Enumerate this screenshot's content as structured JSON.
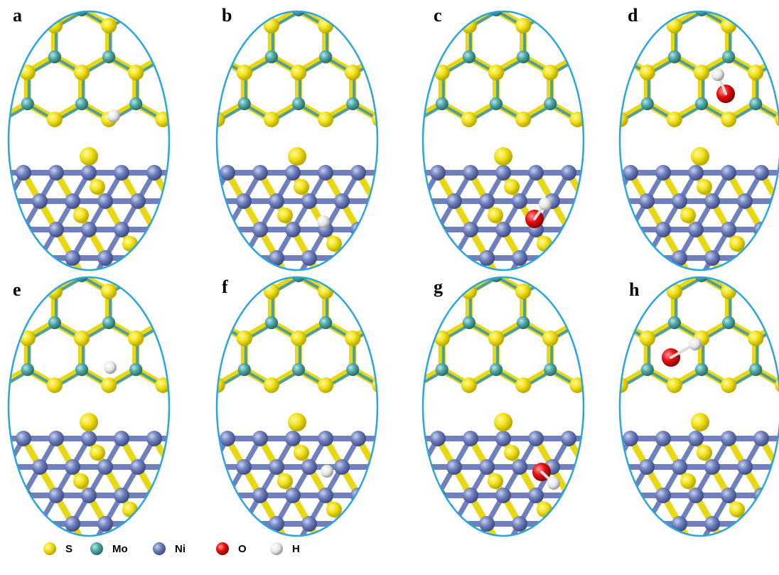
{
  "panels": [
    {
      "label": "a"
    },
    {
      "label": "b"
    },
    {
      "label": "c"
    },
    {
      "label": "d"
    },
    {
      "label": "e"
    },
    {
      "label": "f"
    },
    {
      "label": "g"
    },
    {
      "label": "h"
    }
  ],
  "legend": [
    {
      "label": "S"
    },
    {
      "label": "Mo"
    },
    {
      "label": "Ni"
    },
    {
      "label": "O"
    },
    {
      "label": "H"
    }
  ]
}
